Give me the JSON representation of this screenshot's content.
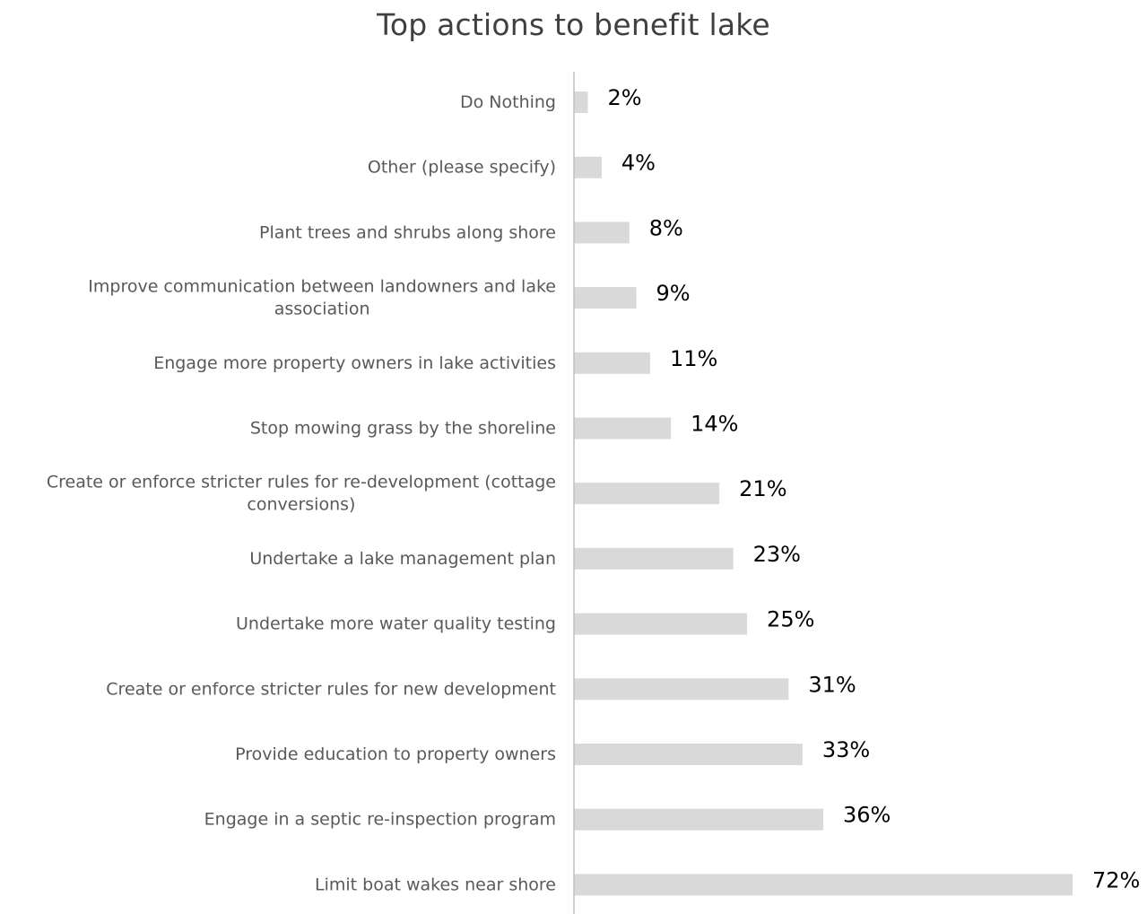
{
  "chart_data": {
    "type": "bar",
    "orientation": "horizontal",
    "title": "Top actions to benefit lake",
    "xlabel": "",
    "ylabel": "",
    "xlim": [
      0,
      72
    ],
    "grid": false,
    "legend": "none",
    "bar_color": "#d9d9d9",
    "categories": [
      [
        "Do Nothing"
      ],
      [
        "Other (please specify)"
      ],
      [
        "Plant trees and shrubs along shore"
      ],
      [
        "Improve communication between landowners and lake",
        "association"
      ],
      [
        "Engage more property owners in lake activities"
      ],
      [
        "Stop mowing grass by the shoreline"
      ],
      [
        "Create or enforce stricter rules for re-development (cottage",
        "conversions)"
      ],
      [
        "Undertake a lake management plan"
      ],
      [
        "Undertake more water quality testing"
      ],
      [
        "Create or enforce stricter rules for new development"
      ],
      [
        "Provide education to property owners"
      ],
      [
        "Engage in a septic re-inspection program"
      ],
      [
        "Limit boat wakes near shore"
      ]
    ],
    "values": [
      2,
      4,
      8,
      9,
      11,
      14,
      21,
      23,
      25,
      31,
      33,
      36,
      72
    ],
    "value_labels": [
      "2%",
      "4%",
      "8%",
      "9%",
      "11%",
      "14%",
      "21%",
      "23%",
      "25%",
      "31%",
      "33%",
      "36%",
      "72%"
    ]
  }
}
